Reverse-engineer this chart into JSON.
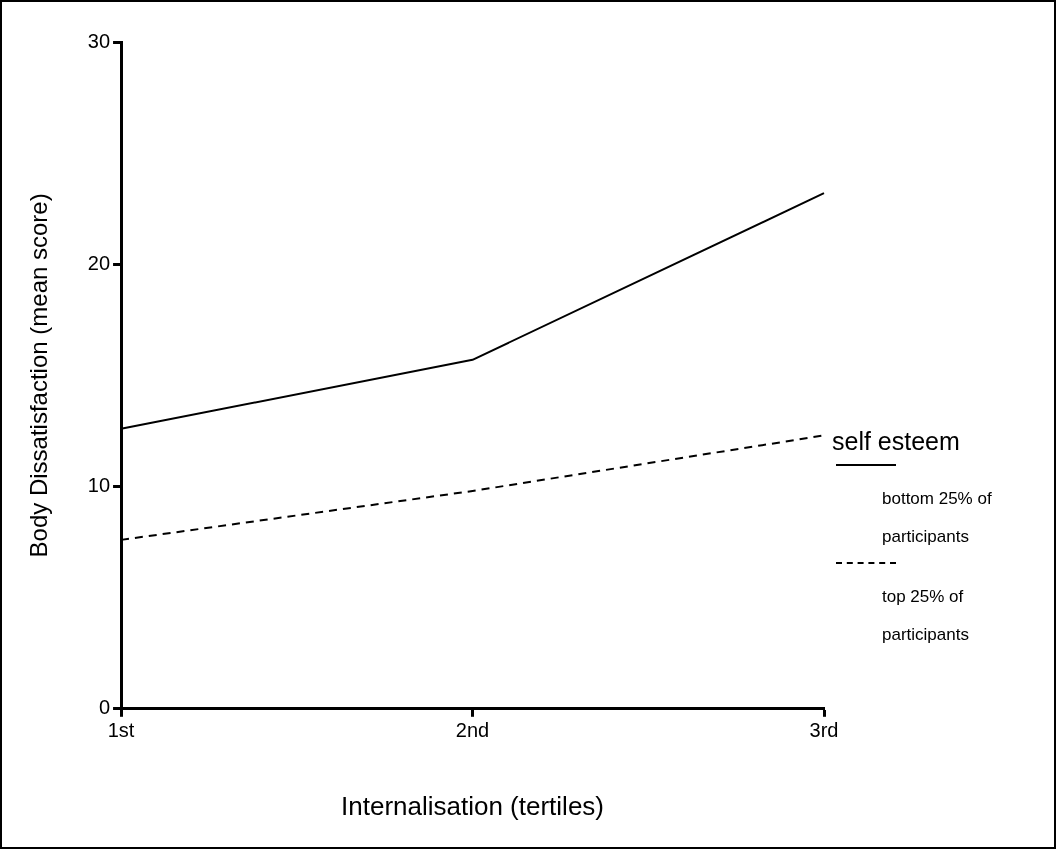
{
  "chart_data": {
    "type": "line",
    "xlabel": "Internalisation (tertiles)",
    "ylabel": "Body Dissatisfaction (mean score)",
    "legend_title": "self esteem",
    "legend": "right",
    "marker": "none",
    "grid": false,
    "categories": [
      "1st",
      "2nd",
      "3rd"
    ],
    "ylim": [
      0,
      30
    ],
    "yticks": [
      0,
      10,
      20,
      30
    ],
    "series": [
      {
        "name": "bottom 25% of participants",
        "color": "#000000",
        "line_style": "solid",
        "values": [
          12.6,
          15.7,
          23.2
        ]
      },
      {
        "name": "top 25% of participants",
        "color": "#000000",
        "line_style": "dashed",
        "values": [
          7.6,
          9.8,
          12.3
        ]
      }
    ]
  }
}
